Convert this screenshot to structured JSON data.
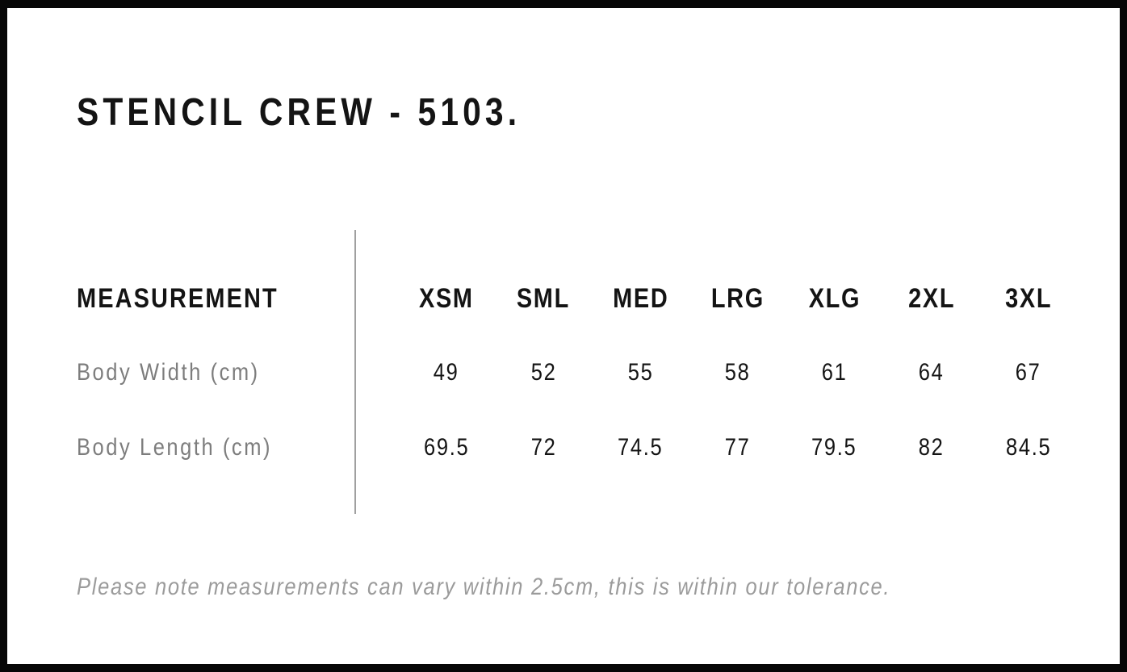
{
  "page": {
    "title": "STENCIL CREW - 5103.",
    "note": "Please note measurements can vary within 2.5cm, this is within our tolerance."
  },
  "size_chart": {
    "header_label": "MEASUREMENT",
    "sizes": [
      "XSM",
      "SML",
      "MED",
      "LRG",
      "XLG",
      "2XL",
      "3XL"
    ],
    "rows": [
      {
        "label": "Body Width (cm)",
        "values": [
          "49",
          "52",
          "55",
          "58",
          "61",
          "64",
          "67"
        ]
      },
      {
        "label": "Body Length (cm)",
        "values": [
          "69.5",
          "72",
          "74.5",
          "77",
          "79.5",
          "82",
          "84.5"
        ]
      }
    ]
  },
  "chart_data": {
    "type": "table",
    "title": "STENCIL CREW - 5103.",
    "columns": [
      "MEASUREMENT",
      "XSM",
      "SML",
      "MED",
      "LRG",
      "XLG",
      "2XL",
      "3XL"
    ],
    "rows": [
      [
        "Body Width (cm)",
        49,
        52,
        55,
        58,
        61,
        64,
        67
      ],
      [
        "Body Length (cm)",
        69.5,
        72,
        74.5,
        77,
        79.5,
        82,
        84.5
      ]
    ],
    "footnote": "Please note measurements can vary within 2.5cm, this is within our tolerance."
  },
  "colors": {
    "frame": "#070707",
    "text": "#141414",
    "row_label": "#7d7d7d",
    "note": "#9b9b9b",
    "divider": "#a0a0a0",
    "background": "#ffffff"
  }
}
